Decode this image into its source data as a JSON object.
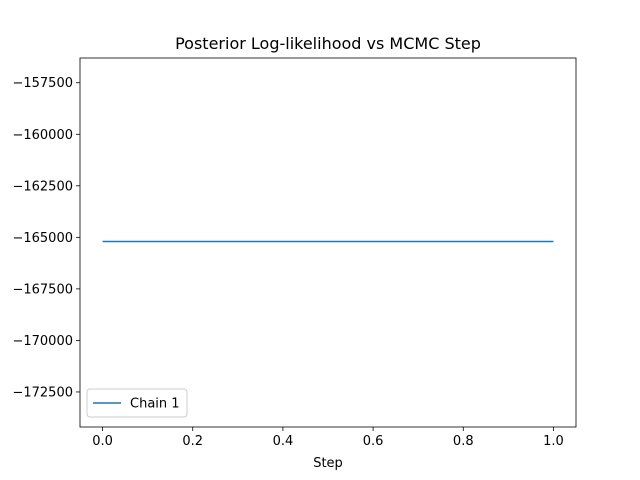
{
  "chart_data": {
    "type": "line",
    "title": "Posterior Log-likelihood vs MCMC Step",
    "xlabel": "Step",
    "ylabel": "",
    "xlim": [
      -0.05,
      1.05
    ],
    "ylim": [
      -174200,
      -156300
    ],
    "xticks": [
      0.0,
      0.2,
      0.4,
      0.6,
      0.8,
      1.0
    ],
    "xtick_labels": [
      "0.0",
      "0.2",
      "0.4",
      "0.6",
      "0.8",
      "1.0"
    ],
    "yticks": [
      -157500,
      -160000,
      -162500,
      -165000,
      -167500,
      -170000,
      -172500
    ],
    "ytick_labels": [
      "−157500",
      "−160000",
      "−162500",
      "−165000",
      "−167500",
      "−170000",
      "−172500"
    ],
    "grid": false,
    "legend_position": "lower-left",
    "series": [
      {
        "name": "Chain 1",
        "color": "#1f77b4",
        "x": [
          0.0,
          1.0
        ],
        "y": [
          -165200,
          -165200
        ]
      }
    ]
  }
}
